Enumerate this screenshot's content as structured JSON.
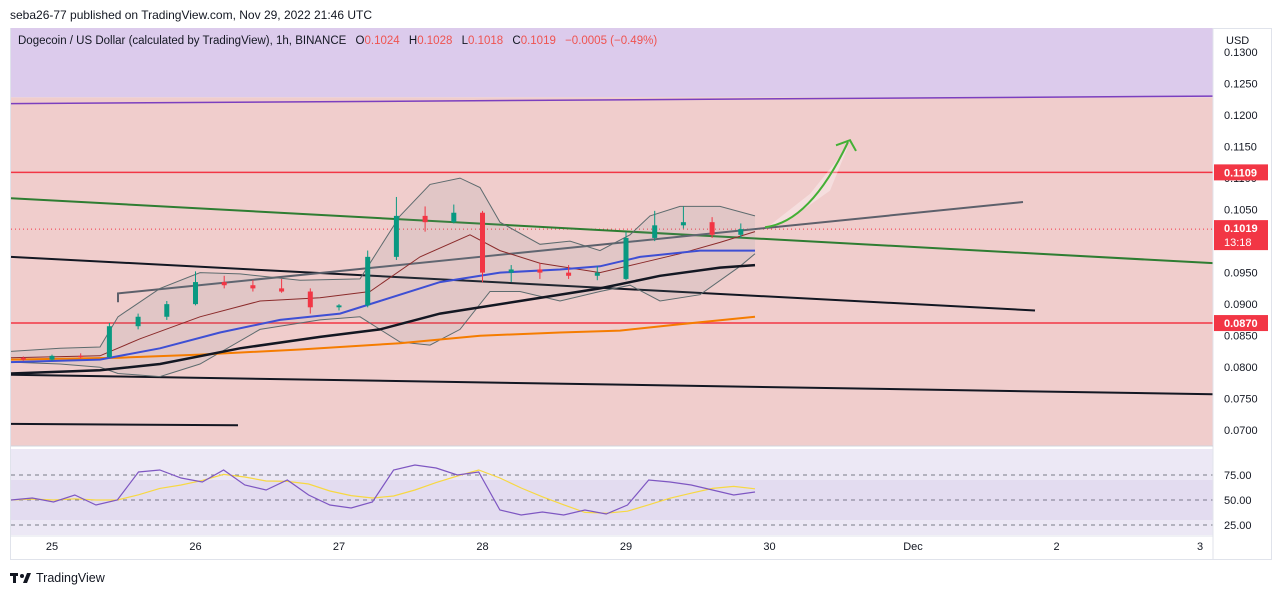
{
  "header": {
    "published_line": "seba26-77 published on TradingView.com, Nov 29, 2022 21:46 UTC"
  },
  "legend": {
    "symbol": "Dogecoin / US Dollar (calculated by TradingView), 1h, BINANCE",
    "open_label": "O",
    "open_value": "0.1024",
    "high_label": "H",
    "high_value": "0.1028",
    "low_label": "L",
    "low_value": "0.1018",
    "close_label": "C",
    "close_value": "0.1019",
    "change": "−0.0005 (−0.49%)"
  },
  "footer": {
    "brand": "TradingView"
  },
  "colors": {
    "up": "#089981",
    "down": "#f23645",
    "zone_purple": "#dccbec",
    "zone_red": "#f0cdcc",
    "level_line": "#f23645",
    "sma_blue": "#3e4fd4",
    "sma_black": "#131722",
    "sma_orange": "#f57c00",
    "trend_green": "#2e7d32",
    "bb_line": "#5d6b6e",
    "rsi_line": "#7e57c2",
    "rsi_ma": "#f7d842",
    "arrow_green": "#43b035"
  },
  "chart_data": {
    "type": "candlestick",
    "title": "Dogecoin / US Dollar (calculated by TradingView), 1h, BINANCE",
    "currency": "USD",
    "price_axis": {
      "range": [
        0.0675,
        0.1338
      ],
      "ticks": [
        "0.1300",
        "0.1250",
        "0.1200",
        "0.1150",
        "0.1100",
        "0.1050",
        "0.1000",
        "0.0950",
        "0.0900",
        "0.0850",
        "0.0800",
        "0.0750",
        "0.0700"
      ]
    },
    "time_axis": {
      "ticks": [
        "25",
        "26",
        "27",
        "28",
        "29",
        "30",
        "Dec",
        "2",
        "3"
      ]
    },
    "last_price": {
      "value": "0.1019",
      "countdown": "13:18"
    },
    "horizontal_levels": [
      {
        "value": "0.1109",
        "label": "0.1109"
      },
      {
        "value": "0.0870",
        "label": "0.0870"
      }
    ],
    "zones": [
      {
        "name": "upper",
        "from": 0.1228,
        "to": 0.1338
      },
      {
        "name": "lower",
        "from": 0.0675,
        "to": 0.1228
      }
    ],
    "candles_approx": [
      [
        24.8,
        0.0815,
        0.0817,
        0.081,
        0.0812
      ],
      [
        25.0,
        0.0812,
        0.082,
        0.081,
        0.0818
      ],
      [
        25.2,
        0.0818,
        0.0822,
        0.0814,
        0.0816
      ],
      [
        25.4,
        0.0816,
        0.087,
        0.0815,
        0.0865
      ],
      [
        25.6,
        0.0865,
        0.0885,
        0.086,
        0.088
      ],
      [
        25.8,
        0.088,
        0.0905,
        0.0875,
        0.09
      ],
      [
        26.0,
        0.09,
        0.0952,
        0.0898,
        0.0935
      ],
      [
        26.2,
        0.0935,
        0.0945,
        0.0925,
        0.093
      ],
      [
        26.4,
        0.093,
        0.0938,
        0.092,
        0.0925
      ],
      [
        26.6,
        0.0925,
        0.094,
        0.0918,
        0.092
      ],
      [
        26.8,
        0.092,
        0.0925,
        0.0885,
        0.0895
      ],
      [
        27.0,
        0.0895,
        0.09,
        0.089,
        0.0898
      ],
      [
        27.2,
        0.0898,
        0.0985,
        0.0895,
        0.0975
      ],
      [
        27.4,
        0.0975,
        0.107,
        0.097,
        0.104
      ],
      [
        27.6,
        0.104,
        0.1055,
        0.1015,
        0.103
      ],
      [
        27.8,
        0.103,
        0.1058,
        0.1028,
        0.1045
      ],
      [
        28.0,
        0.1045,
        0.1048,
        0.0935,
        0.095
      ],
      [
        28.2,
        0.095,
        0.0962,
        0.0935,
        0.0955
      ],
      [
        28.4,
        0.0955,
        0.0965,
        0.094,
        0.095
      ],
      [
        28.6,
        0.095,
        0.0962,
        0.094,
        0.0945
      ],
      [
        28.8,
        0.0945,
        0.096,
        0.0938,
        0.095
      ],
      [
        29.0,
        0.094,
        0.1015,
        0.0938,
        0.1005
      ],
      [
        29.2,
        0.1005,
        0.1048,
        0.1,
        0.1025
      ],
      [
        29.4,
        0.1025,
        0.1055,
        0.102,
        0.103
      ],
      [
        29.6,
        0.103,
        0.1038,
        0.1005,
        0.101
      ],
      [
        29.8,
        0.101,
        0.1028,
        0.1005,
        0.1019
      ]
    ],
    "rsi": {
      "ticks": [
        "75.00",
        "50.00",
        "25.00"
      ],
      "values_approx": [
        50,
        52,
        48,
        55,
        45,
        50,
        78,
        80,
        72,
        68,
        80,
        65,
        60,
        70,
        55,
        45,
        42,
        48,
        80,
        85,
        82,
        75,
        78,
        40,
        35,
        38,
        35,
        40,
        36,
        45,
        70,
        68,
        65,
        60,
        55,
        58
      ]
    }
  }
}
